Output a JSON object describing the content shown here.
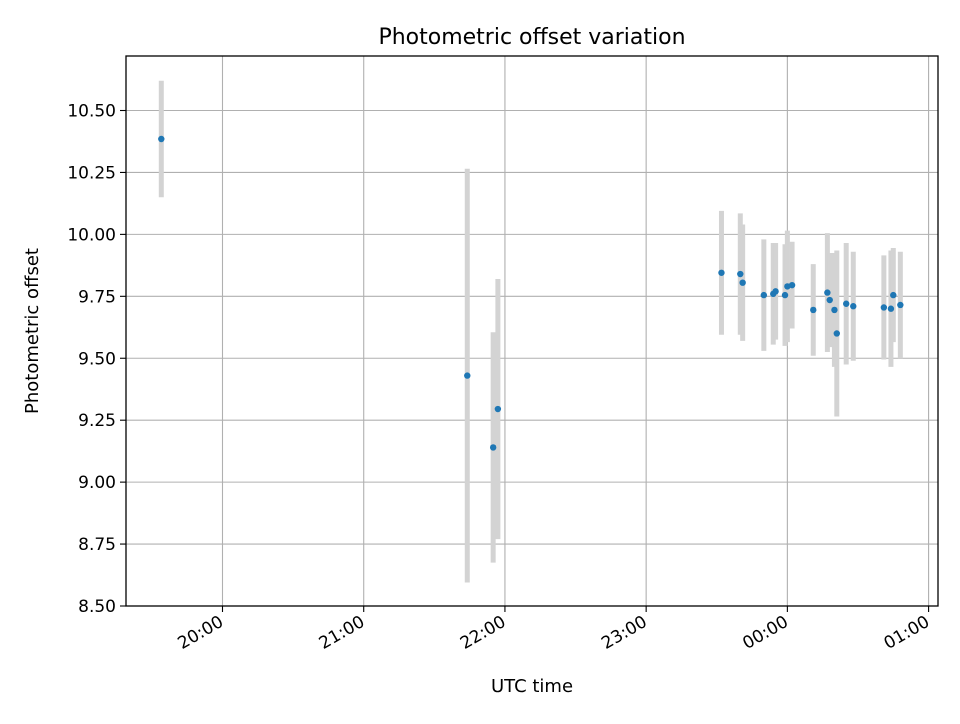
{
  "chart_data": {
    "type": "scatter",
    "title": "Photometric offset variation",
    "xlabel": "UTC time",
    "ylabel": "Photometric offset",
    "xlim": [
      "19:19",
      "01:04"
    ],
    "ylim": [
      8.5,
      10.72
    ],
    "x_tick_labels": [
      "20:00",
      "21:00",
      "22:00",
      "23:00",
      "00:00",
      "01:00"
    ],
    "y_tick_labels": [
      "8.50",
      "8.75",
      "9.00",
      "9.25",
      "9.50",
      "9.75",
      "10.00",
      "10.25",
      "10.50"
    ],
    "grid": true,
    "legend": "none",
    "marker_color": "#1f77b4",
    "errorbar_color": "#d3d3d3",
    "points": [
      {
        "t": "19:34",
        "y": 10.385,
        "err": 0.235
      },
      {
        "t": "21:44",
        "y": 9.43,
        "err": 0.835
      },
      {
        "t": "21:55",
        "y": 9.14,
        "err": 0.465
      },
      {
        "t": "21:57",
        "y": 9.295,
        "err": 0.525
      },
      {
        "t": "23:32",
        "y": 9.845,
        "err": 0.25
      },
      {
        "t": "23:40",
        "y": 9.84,
        "err": 0.245
      },
      {
        "t": "23:41",
        "y": 9.805,
        "err": 0.235
      },
      {
        "t": "23:50",
        "y": 9.755,
        "err": 0.225
      },
      {
        "t": "23:54",
        "y": 9.76,
        "err": 0.205
      },
      {
        "t": "23:55",
        "y": 9.77,
        "err": 0.195
      },
      {
        "t": "23:59",
        "y": 9.755,
        "err": 0.205
      },
      {
        "t": "00:00",
        "y": 9.79,
        "err": 0.225
      },
      {
        "t": "00:02",
        "y": 9.795,
        "err": 0.175
      },
      {
        "t": "00:11",
        "y": 9.695,
        "err": 0.185
      },
      {
        "t": "00:17",
        "y": 9.765,
        "err": 0.24
      },
      {
        "t": "00:18",
        "y": 9.735,
        "err": 0.19
      },
      {
        "t": "00:20",
        "y": 9.695,
        "err": 0.23
      },
      {
        "t": "00:21",
        "y": 9.6,
        "err": 0.335
      },
      {
        "t": "00:25",
        "y": 9.72,
        "err": 0.245
      },
      {
        "t": "00:28",
        "y": 9.71,
        "err": 0.22
      },
      {
        "t": "00:41",
        "y": 9.705,
        "err": 0.21
      },
      {
        "t": "00:44",
        "y": 9.7,
        "err": 0.235
      },
      {
        "t": "00:45",
        "y": 9.755,
        "err": 0.19
      },
      {
        "t": "00:48",
        "y": 9.715,
        "err": 0.215
      }
    ]
  }
}
